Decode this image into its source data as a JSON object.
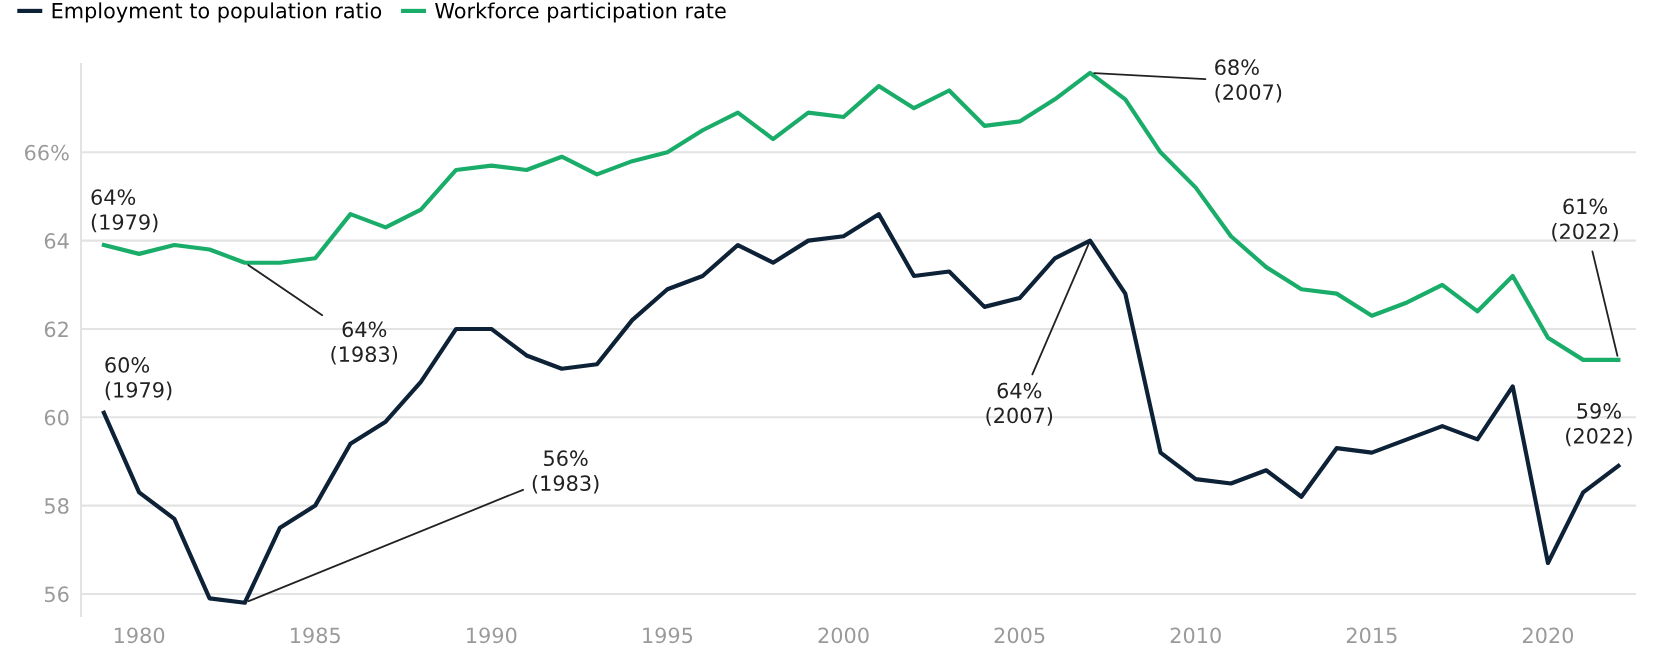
{
  "chart_data": {
    "type": "line",
    "x": [
      1979,
      1980,
      1981,
      1982,
      1983,
      1984,
      1985,
      1986,
      1987,
      1988,
      1989,
      1990,
      1991,
      1992,
      1993,
      1994,
      1995,
      1996,
      1997,
      1998,
      1999,
      2000,
      2001,
      2002,
      2003,
      2004,
      2005,
      2006,
      2007,
      2008,
      2009,
      2010,
      2011,
      2012,
      2013,
      2014,
      2015,
      2016,
      2017,
      2018,
      2019,
      2020,
      2021,
      2022
    ],
    "series": [
      {
        "name": "Employment to population ratio",
        "color": "#0d2137",
        "values": [
          60.1,
          58.3,
          57.7,
          55.9,
          55.8,
          57.5,
          58.0,
          59.4,
          59.9,
          60.8,
          62.0,
          62.0,
          61.4,
          61.1,
          61.2,
          62.2,
          62.9,
          63.2,
          63.9,
          63.5,
          64.0,
          64.1,
          64.6,
          63.2,
          63.3,
          62.5,
          62.7,
          63.6,
          64.0,
          62.8,
          59.2,
          58.6,
          58.5,
          58.8,
          58.2,
          59.3,
          59.2,
          59.5,
          59.8,
          59.5,
          60.7,
          56.7,
          58.3,
          58.9
        ]
      },
      {
        "name": "Workforce participation rate",
        "color": "#1aad6a",
        "values": [
          63.9,
          63.7,
          63.9,
          63.8,
          63.5,
          63.5,
          63.6,
          64.6,
          64.3,
          64.7,
          65.6,
          65.7,
          65.6,
          65.9,
          65.5,
          65.8,
          66.0,
          66.5,
          66.9,
          66.3,
          66.9,
          66.8,
          67.5,
          67.0,
          67.4,
          66.6,
          66.7,
          67.2,
          67.8,
          67.2,
          66.0,
          65.2,
          64.1,
          63.4,
          62.9,
          62.8,
          62.3,
          62.6,
          63.0,
          62.4,
          63.2,
          61.8,
          61.3,
          61.3
        ]
      }
    ],
    "xlim": [
      1978.35,
      2022.5
    ],
    "xticks": [
      1980,
      1985,
      1990,
      1995,
      2000,
      2005,
      2010,
      2015,
      2020
    ],
    "ylim": [
      55.5,
      68.0
    ],
    "yticks": [
      56,
      58,
      60,
      62,
      64,
      {
        "value": 66,
        "label": "66%"
      }
    ],
    "grid": "y",
    "legend": "top left",
    "annotations": [
      {
        "text": "60%\n(1979)",
        "x": 1979,
        "y": 60.1
      },
      {
        "text": "64%\n(1979)",
        "x": 1979,
        "y": 63.9
      },
      {
        "text": "64%\n(1983)",
        "x": 1983,
        "y": 63.5
      },
      {
        "text": "56%\n(1983)",
        "x": 1983,
        "y": 55.8
      },
      {
        "text": "64%\n(2007)",
        "x": 2007,
        "y": 64.0
      },
      {
        "text": "68%\n(2007)",
        "x": 2007,
        "y": 67.8
      },
      {
        "text": "61%\n(2022)",
        "x": 2022,
        "y": 61.3
      },
      {
        "text": "59%\n(2022)",
        "x": 2022,
        "y": 58.9
      }
    ]
  }
}
